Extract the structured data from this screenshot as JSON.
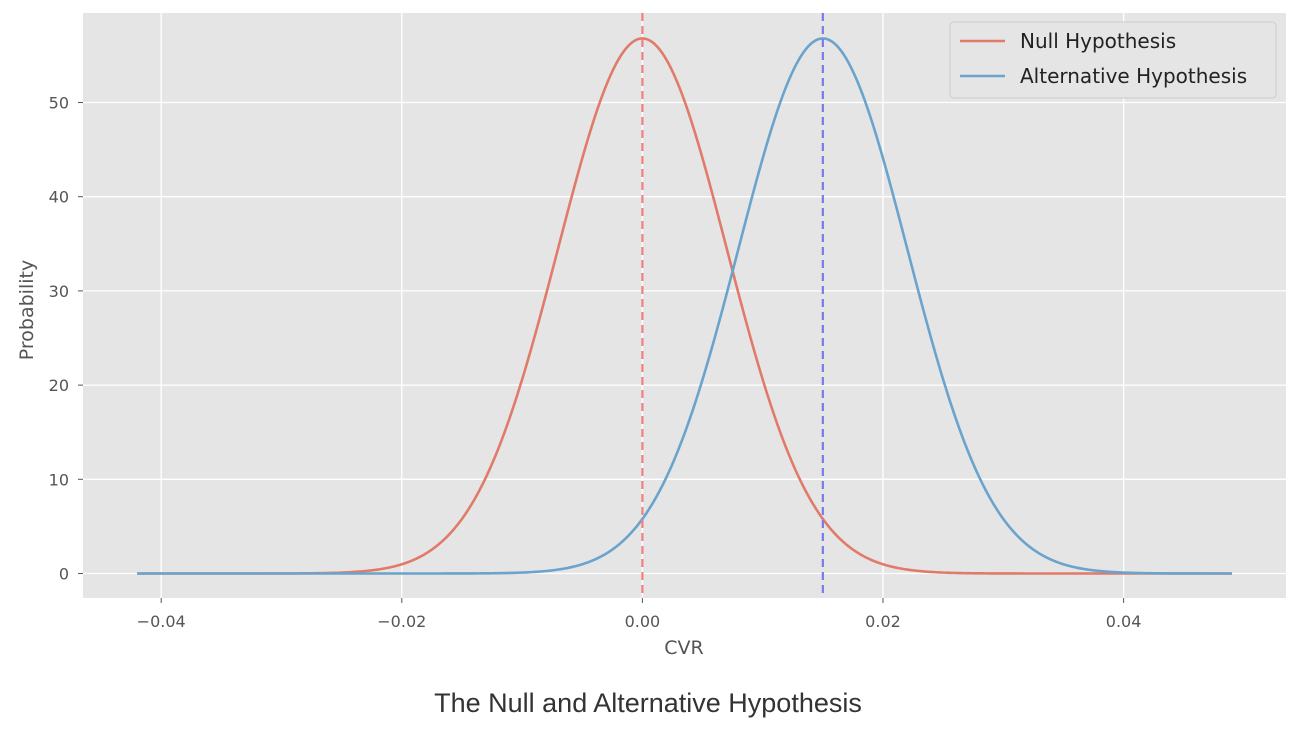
{
  "chart_data": {
    "type": "line",
    "xlabel": "CVR",
    "ylabel": "Probability",
    "xlim": [
      -0.0465,
      0.0535
    ],
    "ylim": [
      -2.6,
      59.5
    ],
    "xticks": [
      -0.04,
      -0.02,
      0.0,
      0.02,
      0.04
    ],
    "xtick_labels": [
      "−0.04",
      "−0.02",
      "0.00",
      "0.02",
      "0.04"
    ],
    "yticks": [
      0,
      10,
      20,
      30,
      40,
      50
    ],
    "ytick_labels": [
      "0",
      "10",
      "20",
      "30",
      "40",
      "50"
    ],
    "grid": true,
    "legend_position": "top-right",
    "x_range": [
      -0.042,
      0.049
    ],
    "series": [
      {
        "name": "Null Hypothesis",
        "distribution": "normal",
        "mean": 0.0,
        "std": 0.00702,
        "peak": 56.8,
        "color": "#e07b6a"
      },
      {
        "name": "Alternative Hypothesis",
        "distribution": "normal",
        "mean": 0.015,
        "std": 0.00702,
        "peak": 56.8,
        "color": "#6aa3cc"
      }
    ],
    "vlines": [
      {
        "x": 0.0,
        "color": "#f08080",
        "style": "dashed"
      },
      {
        "x": 0.015,
        "color": "#7a7aee",
        "style": "dashed"
      }
    ]
  },
  "caption": "The Null and Alternative Hypothesis",
  "colors": {
    "plot_background": "#e5e5e5",
    "grid": "#ffffff"
  }
}
